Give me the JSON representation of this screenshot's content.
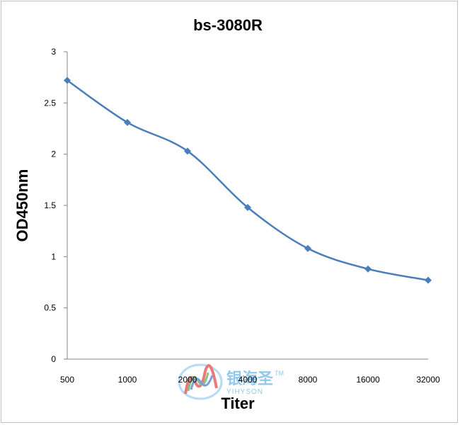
{
  "chart_data": {
    "type": "line",
    "title": "bs-3080R",
    "xlabel": "Titer",
    "ylabel": "OD450nm",
    "categories": [
      "500",
      "1000",
      "2000",
      "4000",
      "8000",
      "16000",
      "32000"
    ],
    "series": [
      {
        "values": [
          2.72,
          2.31,
          2.03,
          1.48,
          1.08,
          0.88,
          0.77
        ]
      }
    ],
    "ylim": [
      0,
      3
    ],
    "yticks": [
      "0",
      "0.5",
      "1",
      "1.5",
      "2",
      "2.5",
      "3"
    ],
    "grid": false,
    "legend": "none",
    "line_color": "#4a7ebb"
  },
  "watermark": {
    "chinese": "银海圣",
    "english": "YIHYSON",
    "tm": "TM"
  }
}
